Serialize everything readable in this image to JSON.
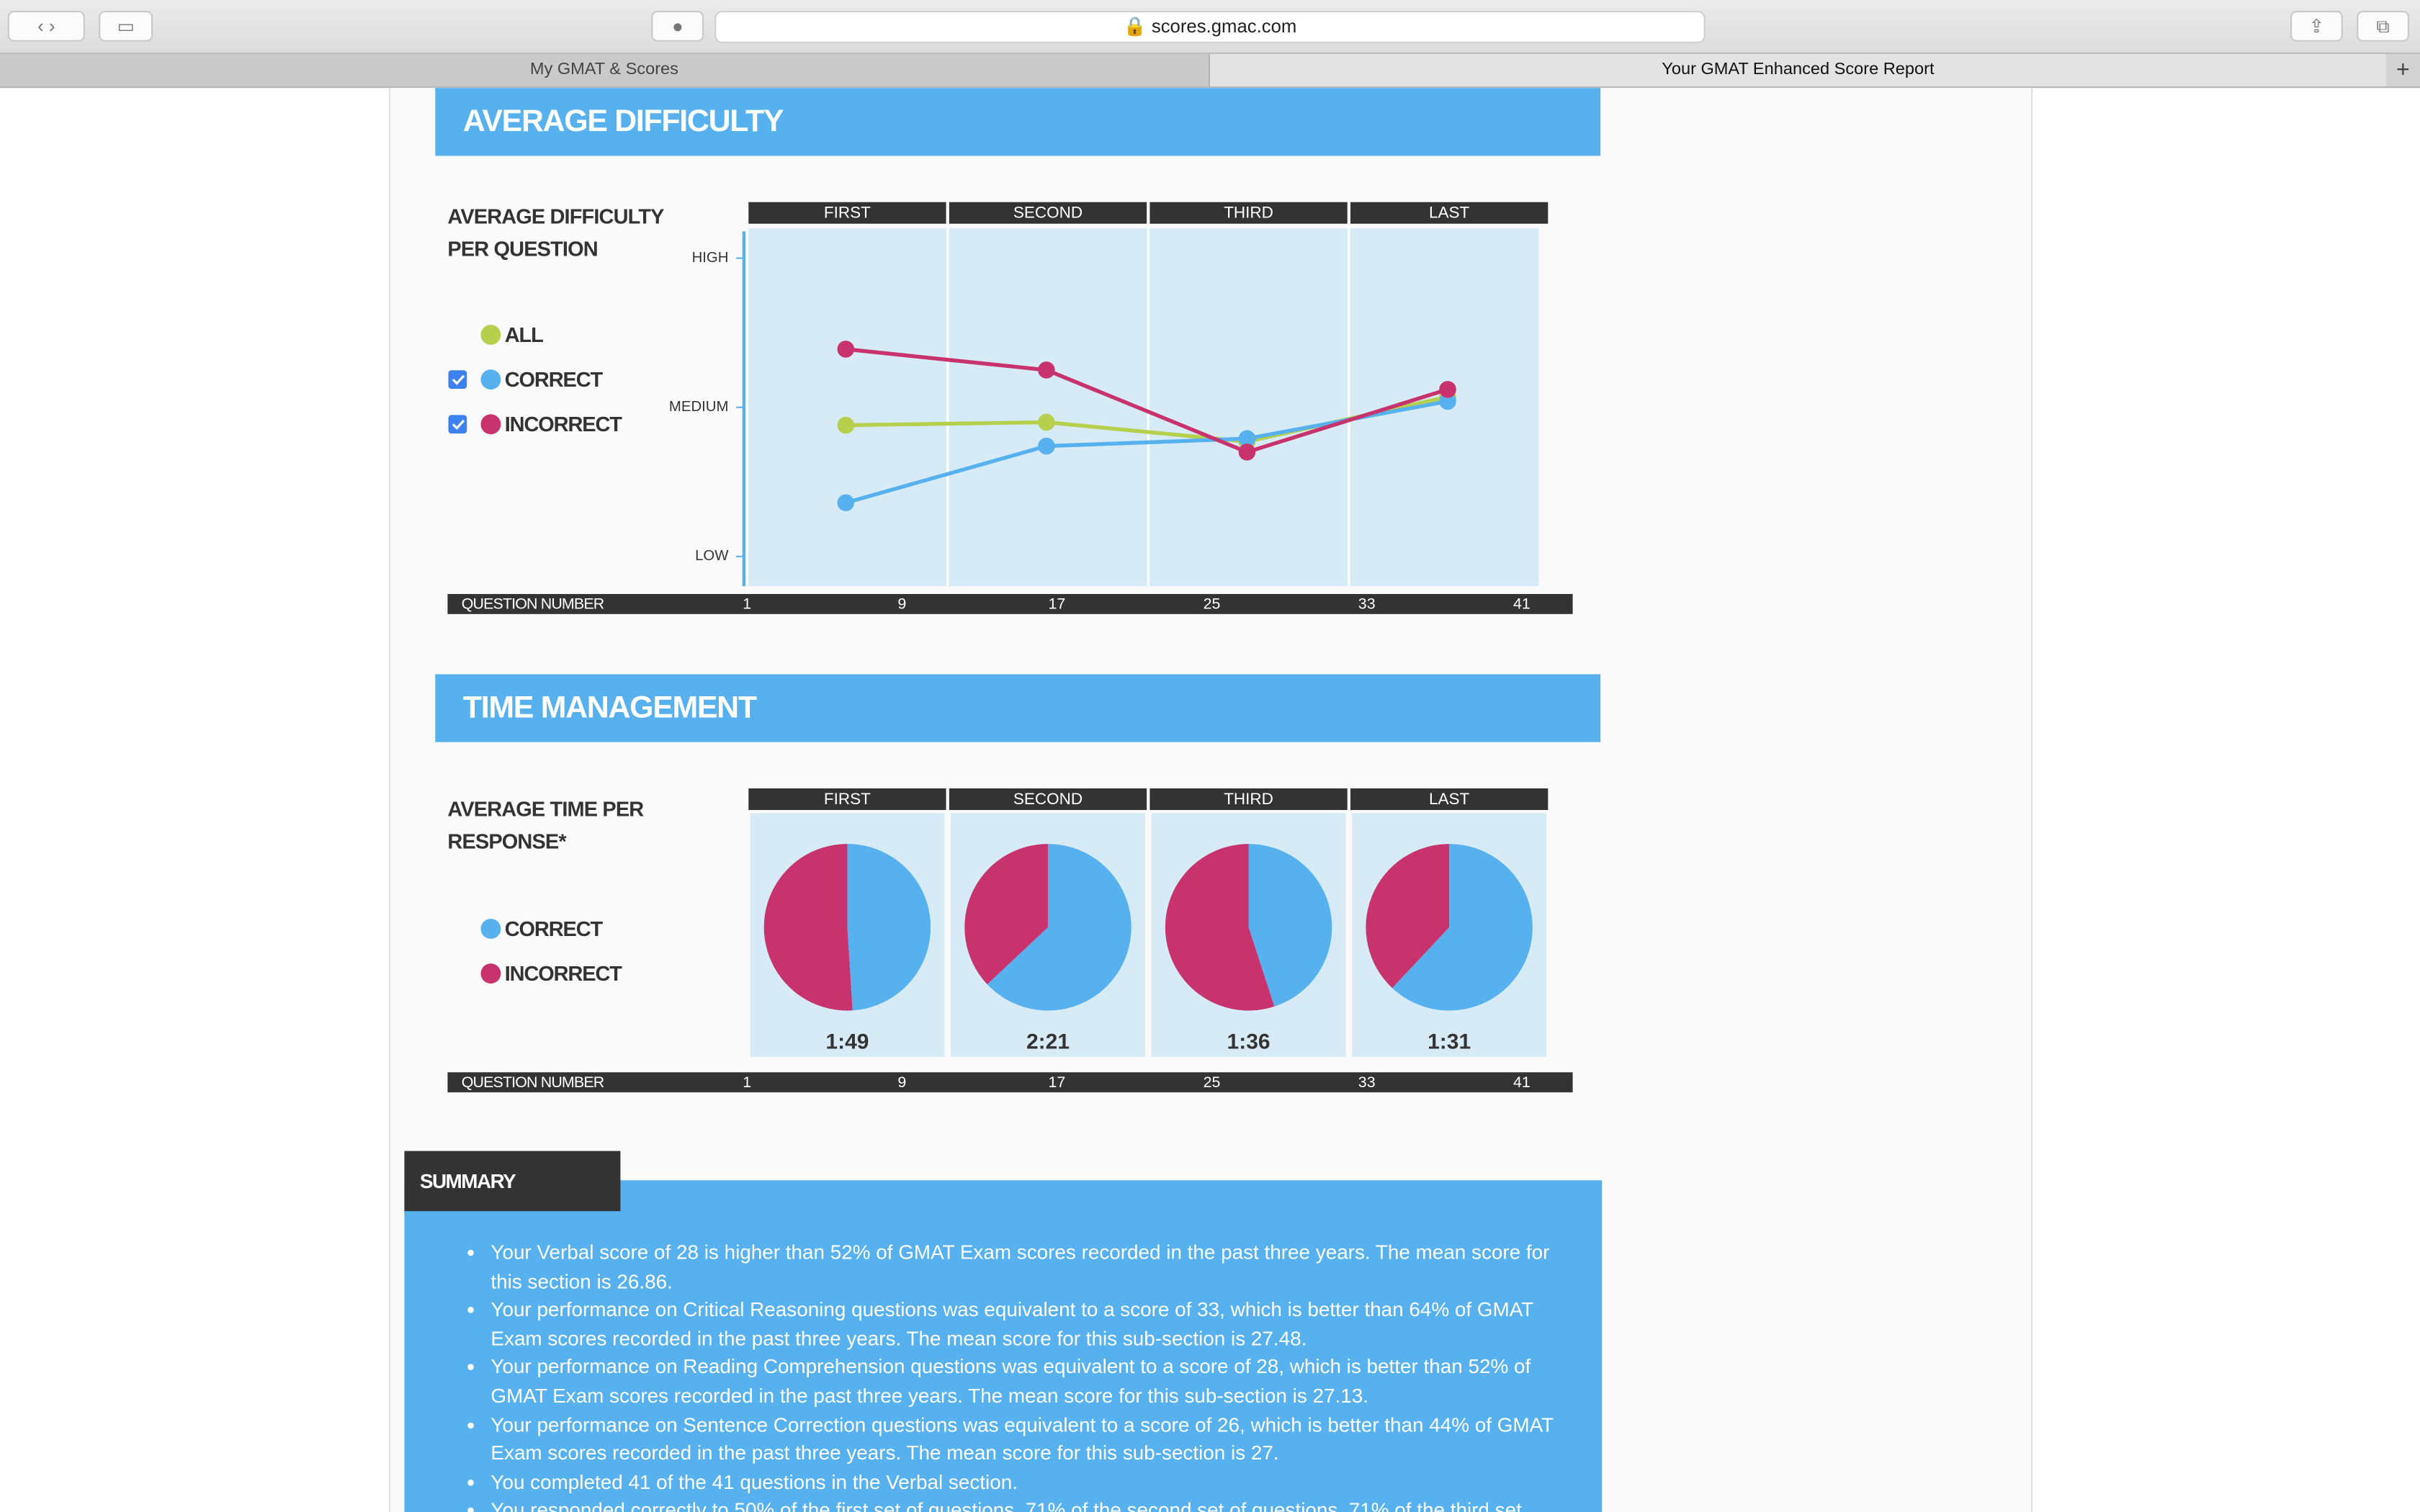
{
  "browser": {
    "url": "scores.gmac.com",
    "tabs": [
      "My GMAT & Scores",
      "Your GMAT Enhanced Score Report"
    ]
  },
  "sections": {
    "difficulty": "AVERAGE DIFFICULTY",
    "time": "TIME MANAGEMENT"
  },
  "chart_data": [
    {
      "type": "line",
      "title": "AVERAGE DIFFICULTY PER QUESTION",
      "categories": [
        "FIRST",
        "SECOND",
        "THIRD",
        "LAST"
      ],
      "series": [
        {
          "name": "ALL",
          "color": "#b6cf4c",
          "values": [
            0.88,
            0.9,
            0.77,
            1.07
          ]
        },
        {
          "name": "CORRECT",
          "color": "#56b1ee",
          "values": [
            0.36,
            0.74,
            0.79,
            1.04
          ]
        },
        {
          "name": "INCORRECT",
          "color": "#c8336e",
          "values": [
            1.39,
            1.25,
            0.7,
            1.12
          ]
        }
      ],
      "ylim": [
        -0.2,
        2.2
      ],
      "yticks": [
        {
          "value": 0,
          "label": "LOW"
        },
        {
          "value": 1,
          "label": "MEDIUM"
        },
        {
          "value": 2,
          "label": "HIGH"
        }
      ],
      "xlabel": "QUESTION NUMBER",
      "xlim": [
        1,
        41
      ],
      "xticks": [
        1,
        9,
        17,
        25,
        33,
        41
      ]
    },
    {
      "type": "pie",
      "title": "AVERAGE TIME PER RESPONSE*",
      "categories": [
        "FIRST",
        "SECOND",
        "THIRD",
        "LAST"
      ],
      "series": [
        {
          "name": "CORRECT",
          "color": "#56b1ee",
          "values": [
            49,
            63,
            45,
            62
          ]
        },
        {
          "name": "INCORRECT",
          "color": "#c8336e",
          "values": [
            51,
            37,
            55,
            38
          ]
        }
      ],
      "totals": [
        "1:49",
        "2:21",
        "1:36",
        "1:31"
      ],
      "xlabel": "QUESTION NUMBER",
      "xlim": [
        1,
        41
      ],
      "xticks": [
        1,
        9,
        17,
        25,
        33,
        41
      ]
    }
  ],
  "summary": {
    "title": "SUMMARY",
    "items": [
      "Your Verbal score of 28 is higher than 52% of GMAT Exam scores recorded in the past three years. The mean score for this section is 26.86.",
      "Your performance on Critical Reasoning questions was equivalent to a score of 33, which is better than 64% of GMAT Exam scores recorded in the past three years. The mean score for this sub-section is 27.48.",
      "Your performance on Reading Comprehension questions was equivalent to a score of 28, which is better than 52% of GMAT Exam scores recorded in the past three years. The mean score for this sub-section is 27.13.",
      "Your performance on Sentence Correction questions was equivalent to a score of 26, which is better than 44% of GMAT Exam scores recorded in the past three years. The mean score for this sub-section is 27.",
      "You completed 41 of the 41 questions in the Verbal section.",
      "You responded correctly to 50% of the first set of questions, 71% of the second set of questions, 71% of the third set"
    ]
  }
}
